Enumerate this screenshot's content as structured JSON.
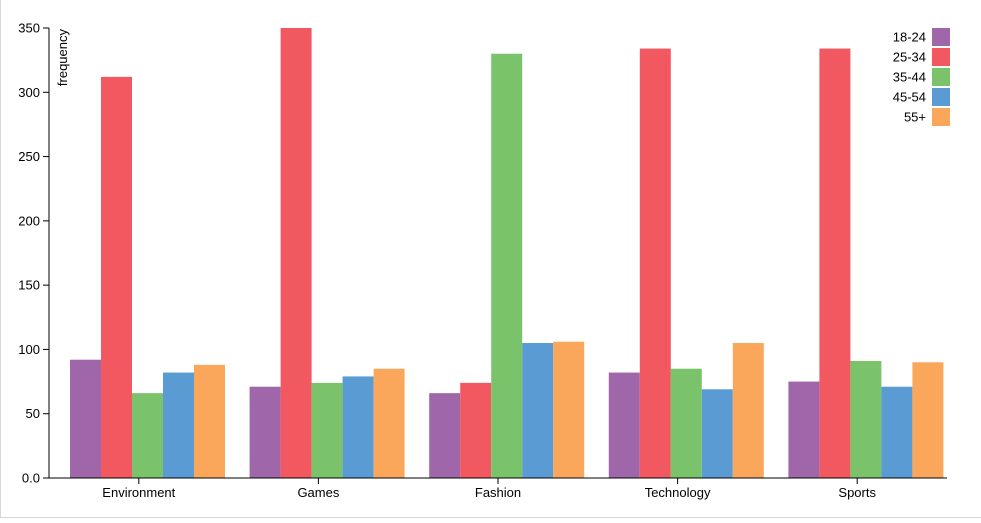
{
  "chart_data": {
    "type": "bar",
    "categories": [
      "Environment",
      "Games",
      "Fashion",
      "Technology",
      "Sports"
    ],
    "series": [
      {
        "name": "18-24",
        "color": "#a066aa",
        "values": [
          92,
          71,
          66,
          82,
          75
        ]
      },
      {
        "name": "25-34",
        "color": "#f15860",
        "values": [
          312,
          350,
          74,
          334,
          334
        ]
      },
      {
        "name": "35-44",
        "color": "#7ac36a",
        "values": [
          66,
          74,
          330,
          85,
          91
        ]
      },
      {
        "name": "45-54",
        "color": "#5a9bd4",
        "values": [
          82,
          79,
          105,
          69,
          71
        ]
      },
      {
        "name": "55+",
        "color": "#faa75b",
        "values": [
          88,
          85,
          106,
          105,
          90
        ]
      }
    ],
    "title": "",
    "xlabel": "",
    "ylabel": "frequency",
    "ylim": [
      0,
      350
    ],
    "yticks": [
      "0.0",
      "50",
      "100",
      "150",
      "200",
      "250",
      "300",
      "350"
    ],
    "grid": false,
    "legend_position": "top-right"
  }
}
